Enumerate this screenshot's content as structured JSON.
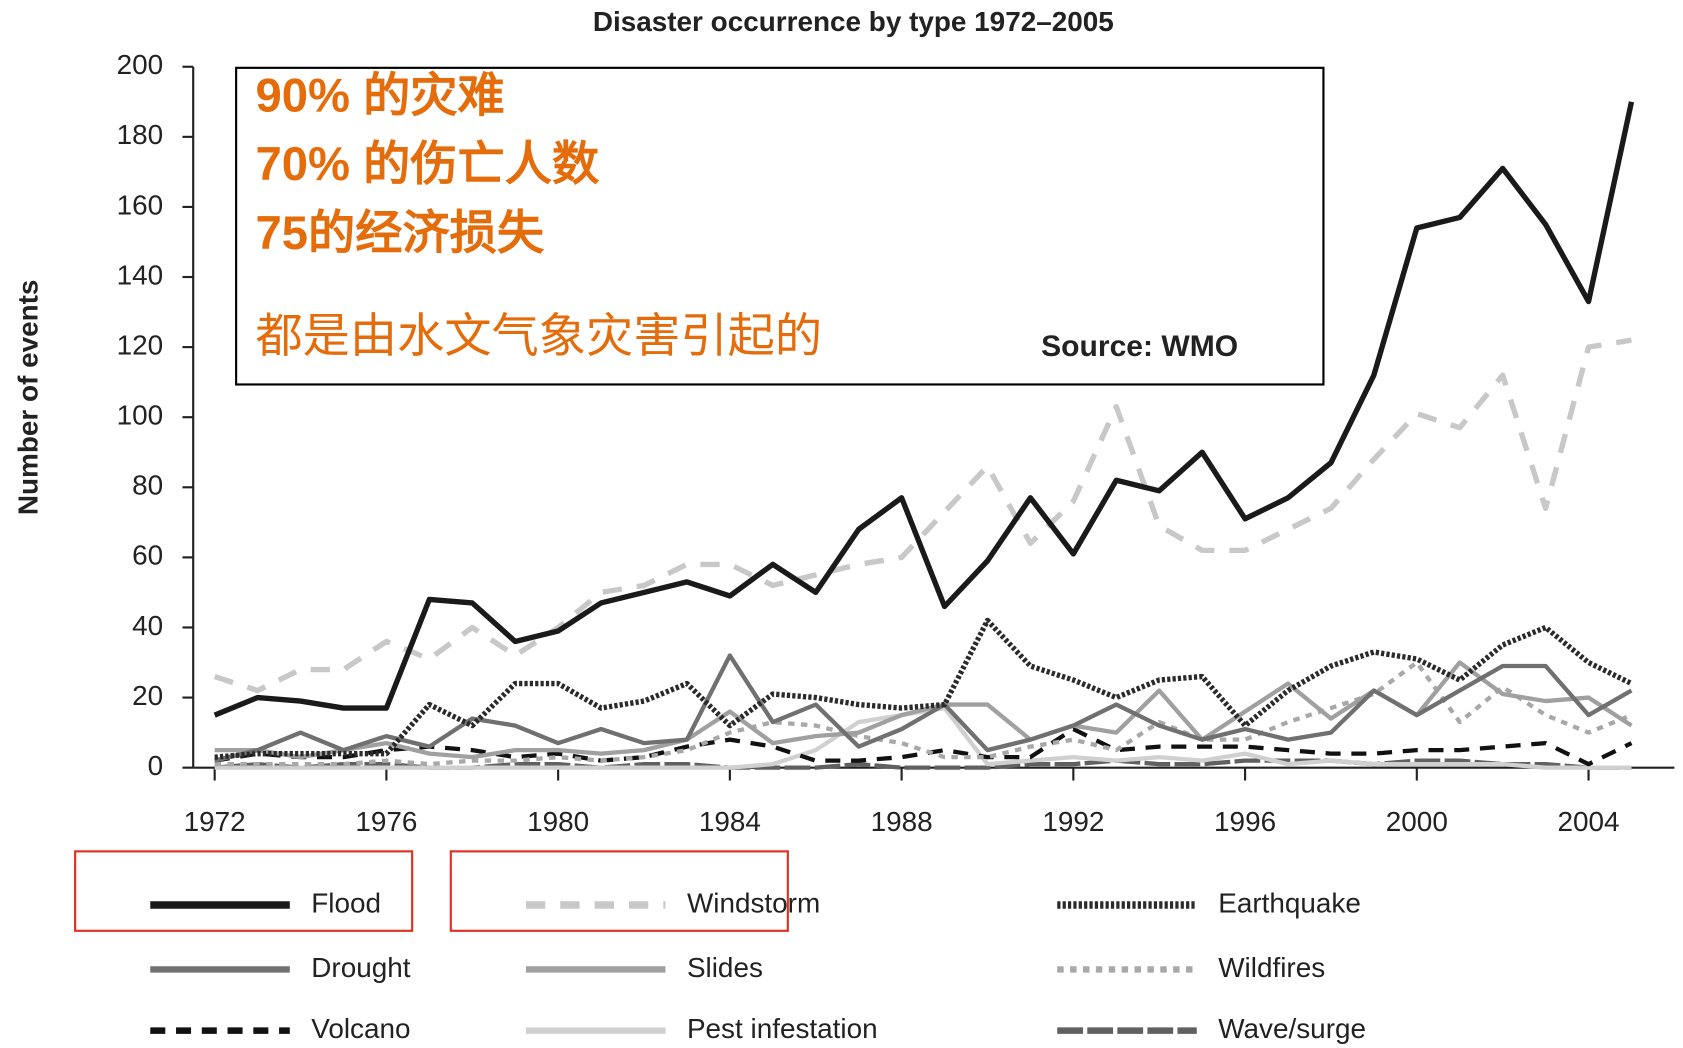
{
  "chart_data": {
    "type": "line",
    "title": "Disaster occurrence by type 1972–2005",
    "y_label": "Number of events",
    "annotations": [
      "90% 的灾难",
      "70% 的伤亡人数",
      "75的经济损失",
      "都是由水文气象灾害引起的"
    ],
    "source": "Source: WMO",
    "x": [
      1972,
      1973,
      1974,
      1975,
      1976,
      1977,
      1978,
      1979,
      1980,
      1981,
      1982,
      1983,
      1984,
      1985,
      1986,
      1987,
      1988,
      1989,
      1990,
      1991,
      1992,
      1993,
      1994,
      1995,
      1996,
      1997,
      1998,
      1999,
      2000,
      2001,
      2002,
      2003,
      2004,
      2005
    ],
    "xlim": [
      1971.5,
      2006
    ],
    "xticks": [
      1972,
      1976,
      1980,
      1984,
      1988,
      1992,
      1996,
      2000,
      2004
    ],
    "ylim": [
      0,
      200
    ],
    "yticks": [
      0,
      20,
      40,
      60,
      80,
      100,
      120,
      140,
      160,
      180,
      200
    ],
    "series": [
      {
        "name": "Flood",
        "color": "#1a1a1a",
        "dash": "none",
        "width": 5,
        "highlight": true,
        "values": [
          15,
          20,
          19,
          17,
          17,
          48,
          47,
          36,
          39,
          47,
          50,
          53,
          49,
          58,
          50,
          68,
          77,
          46,
          59,
          77,
          61,
          82,
          79,
          90,
          71,
          77,
          87,
          112,
          154,
          157,
          171,
          155,
          133,
          190
        ]
      },
      {
        "name": "Windstorm",
        "color": "#c8c8c8",
        "dash": "18 14",
        "width": 5,
        "highlight": true,
        "values": [
          26,
          22,
          28,
          28,
          36,
          31,
          40,
          32,
          40,
          50,
          52,
          58,
          58,
          52,
          55,
          58,
          60,
          73,
          86,
          64,
          76,
          103,
          69,
          62,
          62,
          68,
          74,
          88,
          101,
          97,
          112,
          74,
          120,
          122
        ]
      },
      {
        "name": "Earthquake",
        "color": "#2a2a2a",
        "dash": "3 2",
        "width": 5,
        "values": [
          3,
          4,
          4,
          4,
          4,
          18,
          12,
          24,
          24,
          17,
          19,
          24,
          12,
          21,
          20,
          18,
          17,
          18,
          42,
          29,
          25,
          20,
          25,
          26,
          12,
          22,
          29,
          33,
          31,
          25,
          35,
          40,
          30,
          24
        ]
      },
      {
        "name": "Drought",
        "color": "#707070",
        "dash": "none",
        "width": 4,
        "values": [
          2,
          5,
          10,
          5,
          9,
          6,
          14,
          12,
          7,
          11,
          7,
          8,
          32,
          13,
          18,
          6,
          11,
          18,
          5,
          8,
          12,
          18,
          12,
          8,
          11,
          8,
          10,
          22,
          15,
          22,
          29,
          29,
          15,
          22
        ]
      },
      {
        "name": "Slides",
        "color": "#a0a0a0",
        "dash": "none",
        "width": 4,
        "values": [
          5,
          5,
          3,
          5,
          7,
          4,
          3,
          5,
          5,
          4,
          5,
          8,
          16,
          7,
          9,
          10,
          15,
          18,
          18,
          8,
          12,
          10,
          22,
          8,
          16,
          24,
          14,
          22,
          15,
          30,
          21,
          19,
          20,
          12
        ]
      },
      {
        "name": "Wildfires",
        "color": "#a8a8a8",
        "dash": "6 6",
        "width": 4,
        "values": [
          1,
          1,
          1,
          1,
          2,
          1,
          2,
          2,
          3,
          2,
          3,
          5,
          10,
          13,
          12,
          9,
          7,
          3,
          3,
          6,
          8,
          5,
          13,
          8,
          8,
          13,
          17,
          21,
          30,
          13,
          23,
          15,
          10,
          15
        ]
      },
      {
        "name": "Volcano",
        "color": "#111111",
        "dash": "14 10",
        "width": 4,
        "values": [
          2,
          4,
          3,
          3,
          5,
          6,
          5,
          3,
          4,
          2,
          3,
          6,
          8,
          6,
          2,
          2,
          3,
          5,
          3,
          3,
          11,
          5,
          6,
          6,
          6,
          5,
          4,
          4,
          5,
          5,
          6,
          7,
          1,
          7
        ]
      },
      {
        "name": "Pest infestation",
        "color": "#d0d0d0",
        "dash": "none",
        "width": 4,
        "values": [
          0,
          0,
          0,
          0,
          0,
          0,
          0,
          0,
          0,
          0,
          0,
          0,
          0,
          1,
          5,
          13,
          15,
          17,
          1,
          2,
          3,
          2,
          3,
          2,
          4,
          1,
          2,
          1,
          1,
          1,
          1,
          0,
          0,
          0
        ]
      },
      {
        "name": "Wave/surge",
        "color": "#606060",
        "dash": "24 4",
        "width": 4,
        "values": [
          0,
          1,
          0,
          1,
          1,
          0,
          0,
          1,
          1,
          0,
          1,
          1,
          0,
          0,
          0,
          1,
          0,
          0,
          0,
          1,
          1,
          2,
          1,
          1,
          2,
          2,
          2,
          1,
          2,
          2,
          1,
          1,
          0,
          0
        ]
      }
    ]
  }
}
